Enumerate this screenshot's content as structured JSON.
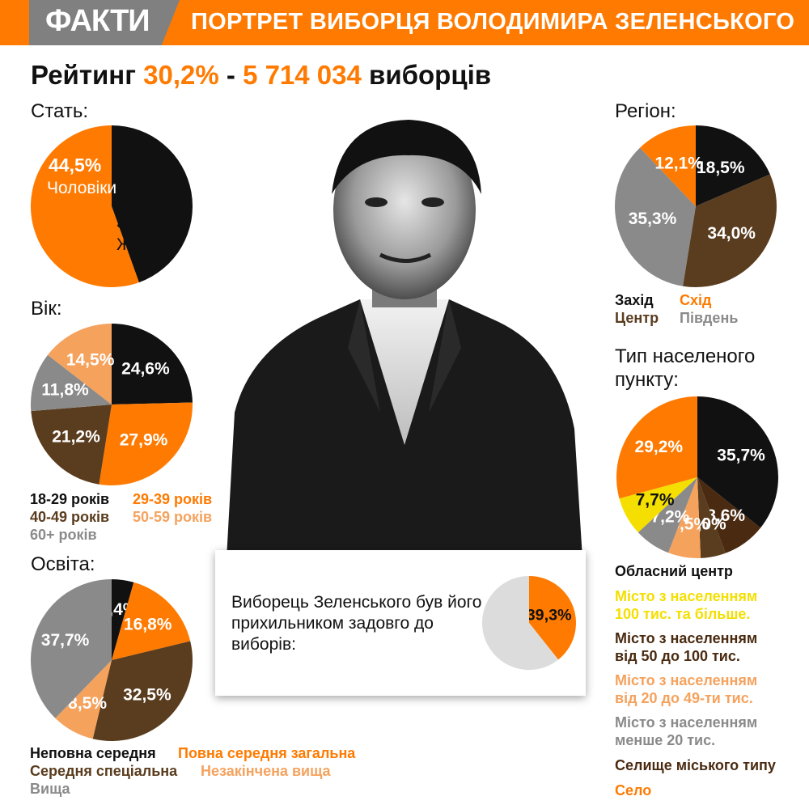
{
  "header": {
    "logo": "ФАКТИ",
    "title": "ПОРТРЕТ ВИБОРЦЯ ВОЛОДИМИРА ЗЕЛЕНСЬКОГО"
  },
  "rating": {
    "prefix": "Рейтинг",
    "percent": "30,2%",
    "dash": "-",
    "count": "5 714 034",
    "suffix": "виборців"
  },
  "callout": {
    "text": "Виборець Зеленського був його прихильником задовго до виборів:",
    "value_label": "39,3%"
  },
  "colors": {
    "orange": "#ff7a00",
    "black": "#111111",
    "brown": "#5a3c1e",
    "grey": "#8a8a8a",
    "peach": "#f5a25d",
    "yellow": "#f4df00",
    "dark_brown": "#4a2a10",
    "light_grey": "#dcdcdc"
  },
  "chart_data": [
    {
      "id": "gender",
      "type": "pie",
      "title": "Стать:",
      "slices": [
        {
          "label": "44,5%",
          "name": "Чоловіки",
          "value": 44.5,
          "color": "#111111"
        },
        {
          "label": "55,5%",
          "name": "Жінки",
          "value": 55.5,
          "color": "#ff7a00"
        }
      ]
    },
    {
      "id": "age",
      "type": "pie",
      "title": "Вік:",
      "slices": [
        {
          "label": "24,6%",
          "name": "18-29 років",
          "value": 24.6,
          "color": "#111111"
        },
        {
          "label": "27,9%",
          "name": "29-39 років",
          "value": 27.9,
          "color": "#ff7a00"
        },
        {
          "label": "21,2%",
          "name": "40-49 років",
          "value": 21.2,
          "color": "#5a3c1e"
        },
        {
          "label": "11,8%",
          "name": "60+ років",
          "value": 11.8,
          "color": "#8a8a8a"
        },
        {
          "label": "14,5%",
          "name": "50-59 років",
          "value": 14.5,
          "color": "#f5a25d"
        }
      ]
    },
    {
      "id": "education",
      "type": "pie",
      "title": "Освіта:",
      "slices": [
        {
          "label": "4,4%",
          "name": "Неповна середня",
          "value": 4.4,
          "color": "#111111"
        },
        {
          "label": "16,8%",
          "name": "Повна середня загальна",
          "value": 16.8,
          "color": "#ff7a00"
        },
        {
          "label": "32,5%",
          "name": "Середня спеціальна",
          "value": 32.5,
          "color": "#5a3c1e"
        },
        {
          "label": "8,5%",
          "name": "Незакінчена вища",
          "value": 8.5,
          "color": "#f5a25d"
        },
        {
          "label": "37,7%",
          "name": "Вища",
          "value": 37.7,
          "color": "#8a8a8a"
        }
      ]
    },
    {
      "id": "region",
      "type": "pie",
      "title": "Регіон:",
      "slices": [
        {
          "label": "18,5%",
          "name": "Захід",
          "value": 18.5,
          "color": "#111111"
        },
        {
          "label": "34,0%",
          "name": "Центр",
          "value": 34.0,
          "color": "#5a3c1e"
        },
        {
          "label": "35,3%",
          "name": "Південь",
          "value": 35.3,
          "color": "#8a8a8a"
        },
        {
          "label": "12,1%",
          "name": "Схід",
          "value": 12.1,
          "color": "#ff7a00"
        }
      ]
    },
    {
      "id": "settlement",
      "type": "pie",
      "title": "Тип населеного пункту:",
      "slices": [
        {
          "label": "35,7%",
          "name": "Обласний центр",
          "value": 35.7,
          "color": "#111111"
        },
        {
          "label": "8,6%",
          "name": "Селище міського типу",
          "value": 8.6,
          "color": "#4a2a10"
        },
        {
          "label": "5,0%",
          "name": "Місто з населенням від 50 до 100 тис.",
          "value": 5.0,
          "color": "#5a3c1e"
        },
        {
          "label": "6,5%",
          "name": "Місто з населенням від 20 до 49-ти тис.",
          "value": 6.5,
          "color": "#f5a25d"
        },
        {
          "label": "7,2%",
          "name": "Місто з населенням менше 20 тис.",
          "value": 7.2,
          "color": "#8a8a8a"
        },
        {
          "label": "7,7%",
          "name": "Місто з населенням 100 тис. та більше.",
          "value": 7.7,
          "color": "#f4df00"
        },
        {
          "label": "29,2%",
          "name": "Село",
          "value": 29.2,
          "color": "#ff7a00"
        }
      ]
    },
    {
      "id": "supporter",
      "type": "pie",
      "slices": [
        {
          "label": "39,3%",
          "value": 39.3,
          "color": "#ff7a00"
        },
        {
          "value": 60.7,
          "color": "#dcdcdc"
        }
      ]
    }
  ]
}
